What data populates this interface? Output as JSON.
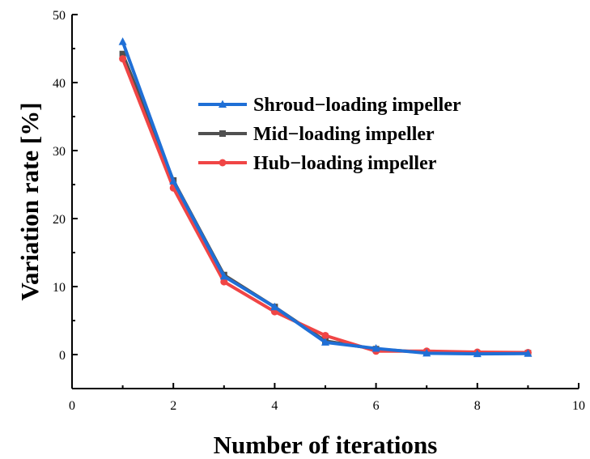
{
  "chart_data": {
    "type": "line",
    "xlabel": "Number of iterations",
    "ylabel": "Variation rate [%]",
    "xlim": [
      0,
      10
    ],
    "ylim": [
      -5,
      50
    ],
    "xticks": [
      "0",
      "2",
      "4",
      "6",
      "8",
      "10"
    ],
    "yticks": [
      "0",
      "10",
      "20",
      "30",
      "40",
      "50"
    ],
    "grid": false,
    "legend_position": "top-right",
    "x": [
      1,
      2,
      3,
      4,
      5,
      6,
      7,
      8,
      9
    ],
    "series": [
      {
        "name": "Shroud−loading impeller",
        "color": "#1f6fd6",
        "marker": "triangle",
        "values": [
          46.0,
          25.5,
          11.5,
          7.0,
          1.8,
          0.9,
          0.2,
          0.1,
          0.15
        ]
      },
      {
        "name": "Mid−loading impeller",
        "color": "#505050",
        "marker": "square",
        "values": [
          44.2,
          25.6,
          11.7,
          7.0,
          2.0,
          0.8,
          0.3,
          0.15,
          0.2
        ]
      },
      {
        "name": "Hub−loading impeller",
        "color": "#f04545",
        "marker": "circle",
        "values": [
          43.5,
          24.5,
          10.7,
          6.3,
          2.8,
          0.5,
          0.5,
          0.35,
          0.3
        ]
      }
    ]
  }
}
